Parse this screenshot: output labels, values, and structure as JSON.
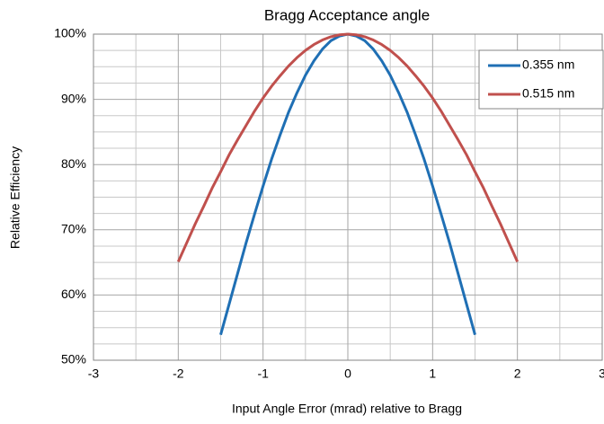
{
  "chart_data": {
    "type": "line",
    "title": "Bragg Acceptance angle",
    "x_label": "Input Angle Error (mrad) relative to Bragg",
    "y_label": "Relative Efficiency",
    "xlim": [
      -3,
      3
    ],
    "xticks": [
      -3,
      -2,
      -1,
      0,
      1,
      2,
      3
    ],
    "xminor_ticks": [
      -2.5,
      -1.5,
      -0.5,
      0.5,
      1.5,
      2.5
    ],
    "ylim": [
      50,
      100
    ],
    "yticks": [
      {
        "value": 50,
        "label": "50%"
      },
      {
        "value": 60,
        "label": "60%"
      },
      {
        "value": 70,
        "label": "70%"
      },
      {
        "value": 80,
        "label": "80%"
      },
      {
        "value": 90,
        "label": "90%"
      },
      {
        "value": 100,
        "label": "100%"
      }
    ],
    "yminor_ticks": [
      52.5,
      55,
      57.5,
      62.5,
      65,
      67.5,
      72.5,
      75,
      77.5,
      82.5,
      85,
      87.5,
      92.5,
      95,
      97.5
    ],
    "grid": true,
    "legend": "upper right",
    "series": [
      {
        "name": "0.355 nm",
        "color": "#1f6fb4",
        "x": [
          -1.5,
          -1.4,
          -1.3,
          -1.2,
          -1.1,
          -1.0,
          -0.9,
          -0.8,
          -0.7,
          -0.6,
          -0.5,
          -0.4,
          -0.3,
          -0.2,
          -0.1,
          0,
          0.1,
          0.2,
          0.3,
          0.4,
          0.5,
          0.6,
          0.7,
          0.8,
          0.9,
          1.0,
          1.1,
          1.2,
          1.3,
          1.4,
          1.5
        ],
        "values": [
          53.9,
          58.6,
          63.3,
          68.0,
          72.4,
          76.7,
          80.8,
          84.5,
          88.0,
          91.0,
          93.7,
          95.9,
          97.7,
          99.0,
          99.7,
          100,
          99.7,
          99.0,
          97.7,
          95.9,
          93.7,
          91.0,
          88.0,
          84.5,
          80.8,
          76.7,
          72.4,
          68.0,
          63.3,
          58.6,
          53.9
        ]
      },
      {
        "name": "0.515 nm",
        "color": "#c0504d",
        "x": [
          -2.0,
          -1.9,
          -1.8,
          -1.7,
          -1.6,
          -1.5,
          -1.4,
          -1.3,
          -1.2,
          -1.1,
          -1.0,
          -0.9,
          -0.8,
          -0.7,
          -0.6,
          -0.5,
          -0.4,
          -0.3,
          -0.2,
          -0.1,
          0,
          0.1,
          0.2,
          0.3,
          0.4,
          0.5,
          0.6,
          0.7,
          0.8,
          0.9,
          1.0,
          1.1,
          1.2,
          1.3,
          1.4,
          1.5,
          1.6,
          1.7,
          1.8,
          1.9,
          2.0
        ],
        "values": [
          65.1,
          68.0,
          70.9,
          73.6,
          76.4,
          78.9,
          81.5,
          83.8,
          86.0,
          88.2,
          90.2,
          92.0,
          93.6,
          95.1,
          96.4,
          97.5,
          98.4,
          99.1,
          99.6,
          99.9,
          100,
          99.9,
          99.6,
          99.1,
          98.4,
          97.5,
          96.4,
          95.1,
          93.6,
          92.0,
          90.2,
          88.2,
          86.0,
          83.8,
          81.5,
          78.9,
          76.4,
          73.6,
          70.9,
          68.0,
          65.1
        ]
      }
    ]
  }
}
